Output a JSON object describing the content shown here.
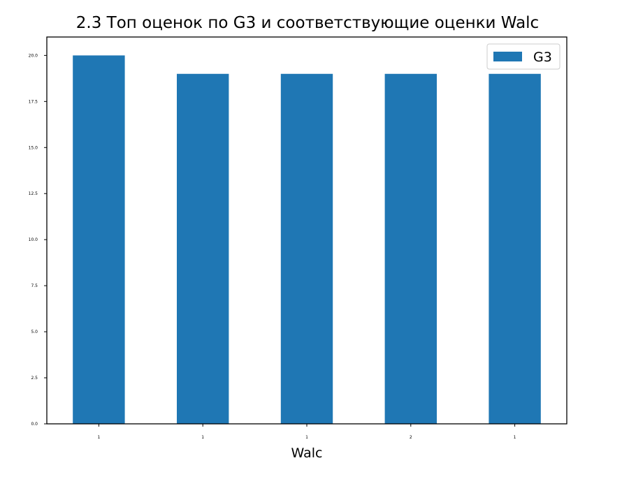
{
  "chart_data": {
    "type": "bar",
    "title": "2.3 Топ оценок по G3 и соответствующие оценки Walc",
    "xlabel": "Walc",
    "ylabel": "",
    "categories": [
      "1",
      "1",
      "1",
      "2",
      "1"
    ],
    "series": [
      {
        "name": "G3",
        "values": [
          20,
          19,
          19,
          19,
          19
        ],
        "color": "#1f77b4"
      }
    ],
    "ylim": [
      0,
      21
    ],
    "y_ticks": [
      "0.0",
      "2.5",
      "5.0",
      "7.5",
      "10.0",
      "12.5",
      "15.0",
      "17.5",
      "20.0"
    ],
    "grid": false,
    "legend": {
      "position": "top-right",
      "entries": [
        "G3"
      ]
    }
  }
}
